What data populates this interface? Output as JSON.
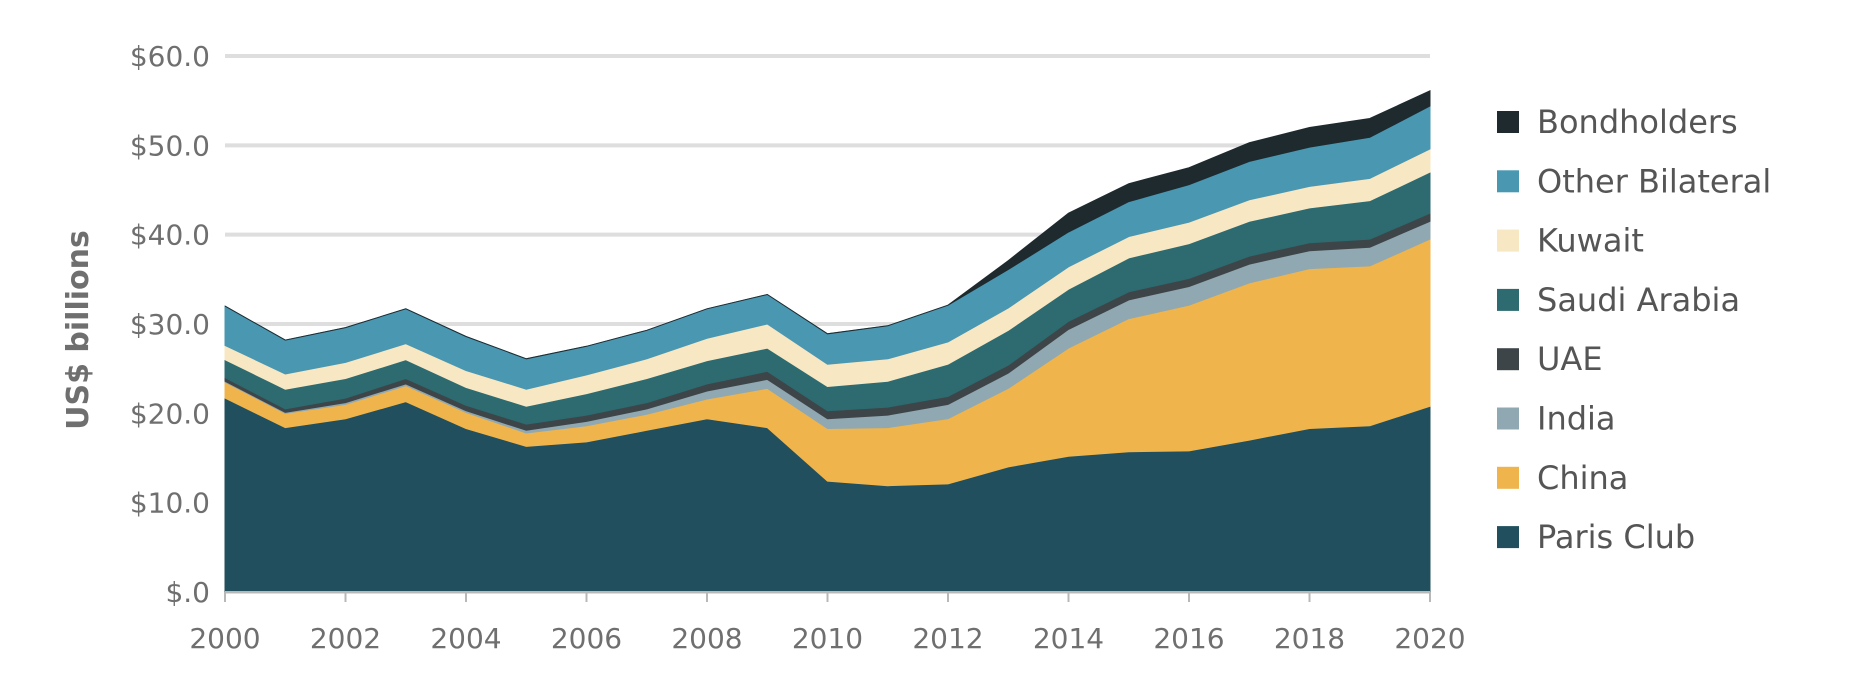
{
  "chart_data": {
    "type": "area",
    "stacked": true,
    "ylabel": "US$ billions",
    "xlabel": "",
    "ylim": [
      0,
      60
    ],
    "xlim": [
      2000,
      2020
    ],
    "y_ticks": [
      0,
      10,
      20,
      30,
      40,
      50,
      60
    ],
    "y_tick_labels": [
      "$.0",
      "$10.0",
      "$20.0",
      "$30.0",
      "$40.0",
      "$50.0",
      "$60.0"
    ],
    "x_ticks": [
      2000,
      2002,
      2004,
      2006,
      2008,
      2010,
      2012,
      2014,
      2016,
      2018,
      2020
    ],
    "x_tick_labels": [
      "2000",
      "2002",
      "2004",
      "2006",
      "2008",
      "2010",
      "2012",
      "2014",
      "2016",
      "2018",
      "2020"
    ],
    "grid": "horizontal",
    "legend_position": "right",
    "x": [
      2000,
      2001,
      2002,
      2003,
      2004,
      2005,
      2006,
      2007,
      2008,
      2009,
      2010,
      2011,
      2012,
      2013,
      2014,
      2015,
      2016,
      2017,
      2018,
      2019,
      2020
    ],
    "series": [
      {
        "name": "Paris Club",
        "color": "#214f5d",
        "values": [
          21.7,
          18.4,
          19.4,
          21.3,
          18.3,
          16.3,
          16.8,
          18.1,
          19.4,
          18.4,
          12.4,
          11.9,
          12.1,
          14.0,
          15.2,
          15.7,
          15.8,
          17.0,
          18.3,
          18.6,
          20.8
        ]
      },
      {
        "name": "China",
        "color": "#f0b44c",
        "values": [
          1.8,
          1.6,
          1.6,
          1.8,
          1.8,
          1.5,
          1.8,
          1.8,
          2.2,
          4.4,
          5.9,
          6.5,
          7.3,
          8.8,
          12.1,
          14.9,
          16.3,
          17.6,
          17.9,
          17.9,
          18.7
        ]
      },
      {
        "name": "India",
        "color": "#90a8b1",
        "values": [
          0.1,
          0.1,
          0.2,
          0.2,
          0.2,
          0.3,
          0.5,
          0.6,
          0.9,
          1.0,
          1.1,
          1.4,
          1.6,
          1.7,
          2.1,
          2.1,
          2.1,
          2.1,
          2.0,
          2.1,
          2.0
        ]
      },
      {
        "name": "UAE",
        "color": "#3e4549",
        "values": [
          0.4,
          0.4,
          0.5,
          0.6,
          0.6,
          0.7,
          0.7,
          0.7,
          0.8,
          0.9,
          0.9,
          0.9,
          0.9,
          0.9,
          0.9,
          0.9,
          0.9,
          0.9,
          0.9,
          0.9,
          0.9
        ]
      },
      {
        "name": "Saudi Arabia",
        "color": "#2d6b70",
        "values": [
          2.0,
          2.2,
          2.2,
          2.1,
          2.0,
          2.0,
          2.4,
          2.7,
          2.6,
          2.6,
          2.7,
          2.9,
          3.6,
          3.9,
          3.6,
          3.8,
          3.9,
          3.9,
          3.9,
          4.3,
          4.6
        ]
      },
      {
        "name": "Kuwait",
        "color": "#f8e7c3",
        "values": [
          1.6,
          1.7,
          1.8,
          1.8,
          1.9,
          1.9,
          2.1,
          2.2,
          2.5,
          2.7,
          2.5,
          2.5,
          2.5,
          2.5,
          2.5,
          2.4,
          2.4,
          2.4,
          2.4,
          2.5,
          2.6
        ]
      },
      {
        "name": "Other Bilateral",
        "color": "#4a97b2",
        "values": [
          4.4,
          3.8,
          3.9,
          3.9,
          3.8,
          3.4,
          3.2,
          3.2,
          3.3,
          3.3,
          3.4,
          3.7,
          4.1,
          4.3,
          3.9,
          3.9,
          4.2,
          4.3,
          4.4,
          4.6,
          4.8
        ]
      },
      {
        "name": "Bondholders",
        "color": "#1e2a2e",
        "values": [
          0,
          0,
          0,
          0,
          0,
          0,
          0,
          0,
          0,
          0,
          0,
          0,
          0,
          1.0,
          2.1,
          2.0,
          1.9,
          2.1,
          2.2,
          2.1,
          1.7
        ]
      }
    ],
    "legend_order": [
      "Bondholders",
      "Other Bilateral",
      "Kuwait",
      "Saudi Arabia",
      "UAE",
      "India",
      "China",
      "Paris Club"
    ]
  }
}
